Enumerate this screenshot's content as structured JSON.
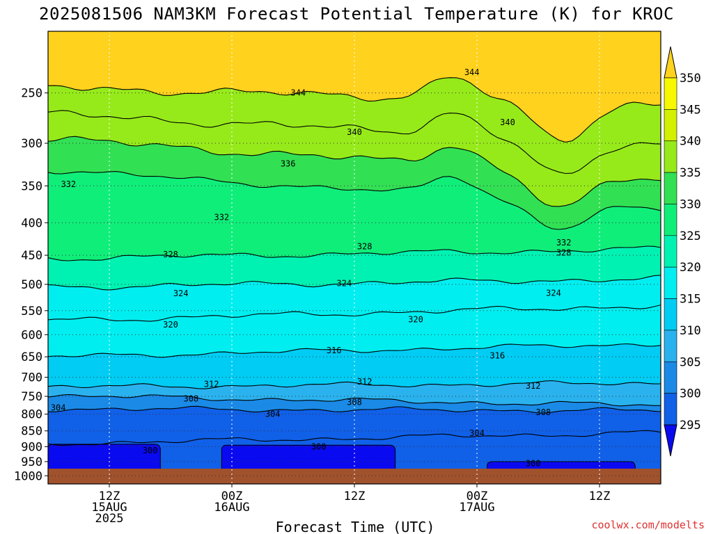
{
  "chart_data": {
    "type": "time-height contour",
    "title": "2025081506 NAM3KM Forecast Potential Temperature (K) for KROC",
    "xlabel": "Forecast Time (UTC)",
    "ylabel": "",
    "credit": "coolwx.com/modelts",
    "y_scale": "log-pressure (hPa), inverted",
    "ylim": [
      200,
      1030
    ],
    "y_ticks": [
      250,
      300,
      350,
      400,
      450,
      500,
      550,
      600,
      650,
      700,
      750,
      800,
      850,
      900,
      950,
      1000
    ],
    "x_hours": [
      0,
      60
    ],
    "x_ticks": [
      {
        "hour": 6,
        "label": [
          "12Z",
          "15AUG",
          "2025"
        ]
      },
      {
        "hour": 18,
        "label": [
          "00Z",
          "16AUG"
        ]
      },
      {
        "hour": 30,
        "label": [
          "12Z"
        ]
      },
      {
        "hour": 42,
        "label": [
          "00Z",
          "17AUG"
        ]
      },
      {
        "hour": 54,
        "label": [
          "12Z"
        ]
      }
    ],
    "colorbar": {
      "levels": [
        295,
        300,
        305,
        310,
        315,
        320,
        325,
        330,
        335,
        340,
        345,
        350
      ],
      "colors": [
        "#0a0af0",
        "#1060e8",
        "#1a8ae6",
        "#2ab2ee",
        "#00ccf4",
        "#00eef0",
        "#00f2b2",
        "#10ee7a",
        "#32e054",
        "#96ea1a",
        "#d2f000",
        "#f8f800",
        "#ffd21e"
      ]
    },
    "isentropes_K": [
      {
        "theta": 300,
        "p": [
          [
            0.5,
            890
          ],
          [
            60,
            855
          ]
        ]
      },
      {
        "theta": 304,
        "p": [
          [
            0.5,
            785
          ],
          [
            60,
            790
          ]
        ]
      },
      {
        "theta": 308,
        "p": [
          [
            0.5,
            748
          ],
          [
            60,
            775
          ]
        ]
      },
      {
        "theta": 312,
        "p": [
          [
            0.5,
            725
          ],
          [
            60,
            715
          ]
        ]
      },
      {
        "theta": 316,
        "p": [
          [
            0.5,
            650
          ],
          [
            60,
            620
          ]
        ]
      },
      {
        "theta": 320,
        "p": [
          [
            0.5,
            570
          ],
          [
            60,
            540
          ]
        ]
      },
      {
        "theta": 324,
        "p": [
          [
            0.5,
            505
          ],
          [
            60,
            490
          ]
        ]
      },
      {
        "theta": 328,
        "p": [
          [
            0.5,
            455
          ],
          [
            60,
            440
          ]
        ]
      },
      {
        "theta": 332,
        "p": [
          [
            0.5,
            330
          ],
          [
            60,
            380
          ]
        ]
      },
      {
        "theta": 336,
        "p": [
          [
            0.5,
            295
          ],
          [
            60,
            340
          ]
        ]
      },
      {
        "theta": 340,
        "p": [
          [
            0.5,
            270
          ],
          [
            60,
            300
          ]
        ]
      },
      {
        "theta": 344,
        "p": [
          [
            0.5,
            245
          ],
          [
            60,
            260
          ]
        ]
      }
    ],
    "contour_labels": [
      {
        "text": "344",
        "hour": 24.5,
        "p": 250
      },
      {
        "text": "344",
        "hour": 41.5,
        "p": 232
      },
      {
        "text": "340",
        "hour": 30,
        "p": 288
      },
      {
        "text": "340",
        "hour": 45,
        "p": 278
      },
      {
        "text": "336",
        "hour": 23.5,
        "p": 323
      },
      {
        "text": "332",
        "hour": 2,
        "p": 348
      },
      {
        "text": "332",
        "hour": 17,
        "p": 392
      },
      {
        "text": "332",
        "hour": 50.5,
        "p": 430
      },
      {
        "text": "328",
        "hour": 12,
        "p": 449
      },
      {
        "text": "328",
        "hour": 31,
        "p": 436
      },
      {
        "text": "328",
        "hour": 50.5,
        "p": 446
      },
      {
        "text": "324",
        "hour": 13,
        "p": 517
      },
      {
        "text": "324",
        "hour": 29,
        "p": 498
      },
      {
        "text": "324",
        "hour": 49.5,
        "p": 516
      },
      {
        "text": "320",
        "hour": 12,
        "p": 579
      },
      {
        "text": "320",
        "hour": 36,
        "p": 568
      },
      {
        "text": "316",
        "hour": 28,
        "p": 635
      },
      {
        "text": "316",
        "hour": 44,
        "p": 647
      },
      {
        "text": "312",
        "hour": 16,
        "p": 718
      },
      {
        "text": "312",
        "hour": 31,
        "p": 711
      },
      {
        "text": "312",
        "hour": 47.5,
        "p": 722
      },
      {
        "text": "308",
        "hour": 14,
        "p": 757
      },
      {
        "text": "308",
        "hour": 30,
        "p": 766
      },
      {
        "text": "308",
        "hour": 48.5,
        "p": 795
      },
      {
        "text": "304",
        "hour": 1,
        "p": 782
      },
      {
        "text": "304",
        "hour": 22,
        "p": 800
      },
      {
        "text": "304",
        "hour": 42,
        "p": 857
      },
      {
        "text": "300",
        "hour": 10,
        "p": 913
      },
      {
        "text": "300",
        "hour": 26.5,
        "p": 900
      },
      {
        "text": "300",
        "hour": 47.5,
        "p": 956
      }
    ],
    "cold_pools_below_300K": [
      {
        "hours": [
          0,
          11
        ],
        "p_top": 892
      },
      {
        "hours": [
          17,
          34
        ],
        "p_top": 895
      },
      {
        "hours": [
          43,
          57.5
        ],
        "p_top": 950
      }
    ],
    "terrain_p": 985
  }
}
